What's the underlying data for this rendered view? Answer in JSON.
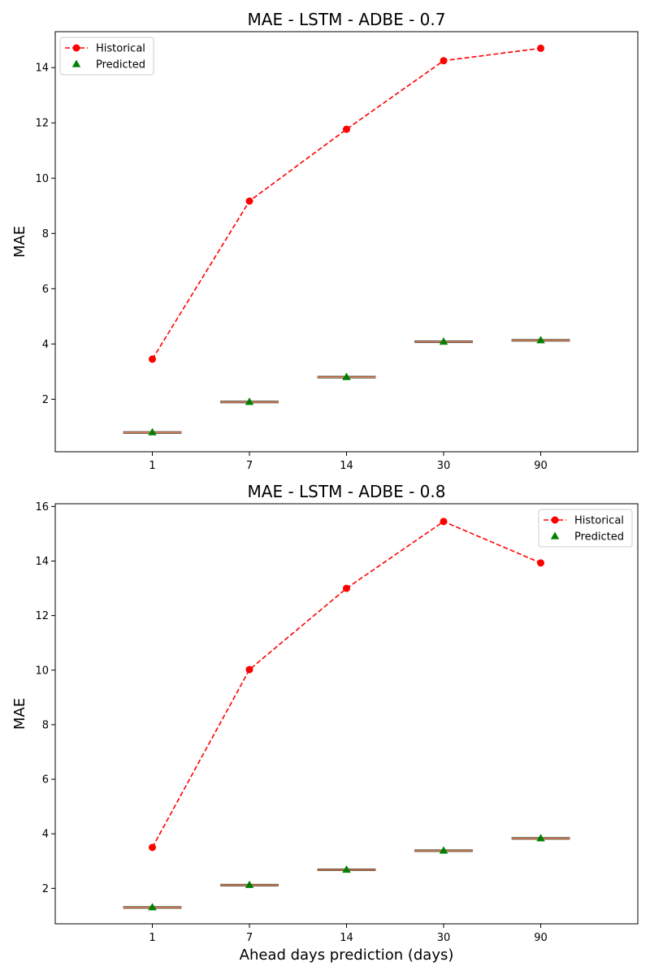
{
  "chart_data": [
    {
      "type": "line",
      "title": "MAE - LSTM - ADBE - 0.7",
      "xlabel": "",
      "ylabel": "MAE",
      "categories": [
        "1",
        "7",
        "14",
        "30",
        "90"
      ],
      "ylim": [
        0.1,
        15.3
      ],
      "yticks": [
        2,
        4,
        6,
        8,
        10,
        12,
        14
      ],
      "grid": false,
      "legend_position": "top-left",
      "series": [
        {
          "name": "Historical",
          "style": "dashed-line-circle",
          "color": "#ff0000",
          "values": [
            3.45,
            9.17,
            11.77,
            14.25,
            14.7
          ]
        },
        {
          "name": "Predicted",
          "style": "triangle-marker-with-median-bar",
          "color": "#008000",
          "bar_color": "#dd8452",
          "values": [
            0.8,
            1.9,
            2.8,
            4.08,
            4.13
          ]
        }
      ]
    },
    {
      "type": "line",
      "title": "MAE - LSTM - ADBE - 0.8",
      "xlabel": "Ahead days prediction (days)",
      "ylabel": "MAE",
      "categories": [
        "1",
        "7",
        "14",
        "30",
        "90"
      ],
      "ylim": [
        0.7,
        16.1
      ],
      "yticks": [
        2,
        4,
        6,
        8,
        10,
        12,
        14,
        16
      ],
      "grid": false,
      "legend_position": "top-right",
      "series": [
        {
          "name": "Historical",
          "style": "dashed-line-circle",
          "color": "#ff0000",
          "values": [
            3.5,
            10.02,
            13.0,
            15.45,
            13.93
          ]
        },
        {
          "name": "Predicted",
          "style": "triangle-marker-with-median-bar",
          "color": "#008000",
          "bar_color": "#dd8452",
          "values": [
            1.3,
            2.12,
            2.68,
            3.38,
            3.83
          ]
        }
      ]
    }
  ]
}
